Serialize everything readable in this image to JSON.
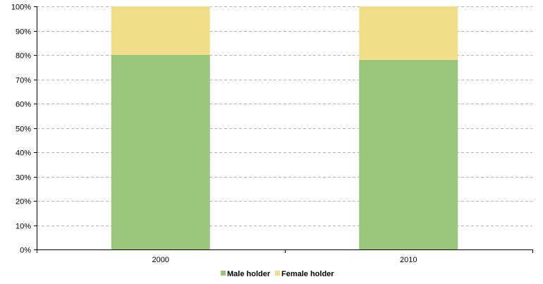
{
  "chart_data": {
    "type": "bar",
    "stacked": true,
    "percent_stacked": true,
    "categories": [
      "2000",
      "2010"
    ],
    "series": [
      {
        "name": "Male holder",
        "values": [
          80,
          78
        ],
        "color": "#9bc57a"
      },
      {
        "name": "Female holder",
        "values": [
          20,
          22
        ],
        "color": "#f0df8a"
      }
    ],
    "ylim": [
      0,
      100
    ],
    "yticks": [
      0,
      10,
      20,
      30,
      40,
      50,
      60,
      70,
      80,
      90,
      100
    ],
    "ytick_labels": [
      "0%",
      "10%",
      "20%",
      "30%",
      "40%",
      "50%",
      "60%",
      "70%",
      "80%",
      "90%",
      "100%"
    ],
    "grid": true,
    "legend_position": "bottom",
    "title": "",
    "xlabel": "",
    "ylabel": ""
  }
}
